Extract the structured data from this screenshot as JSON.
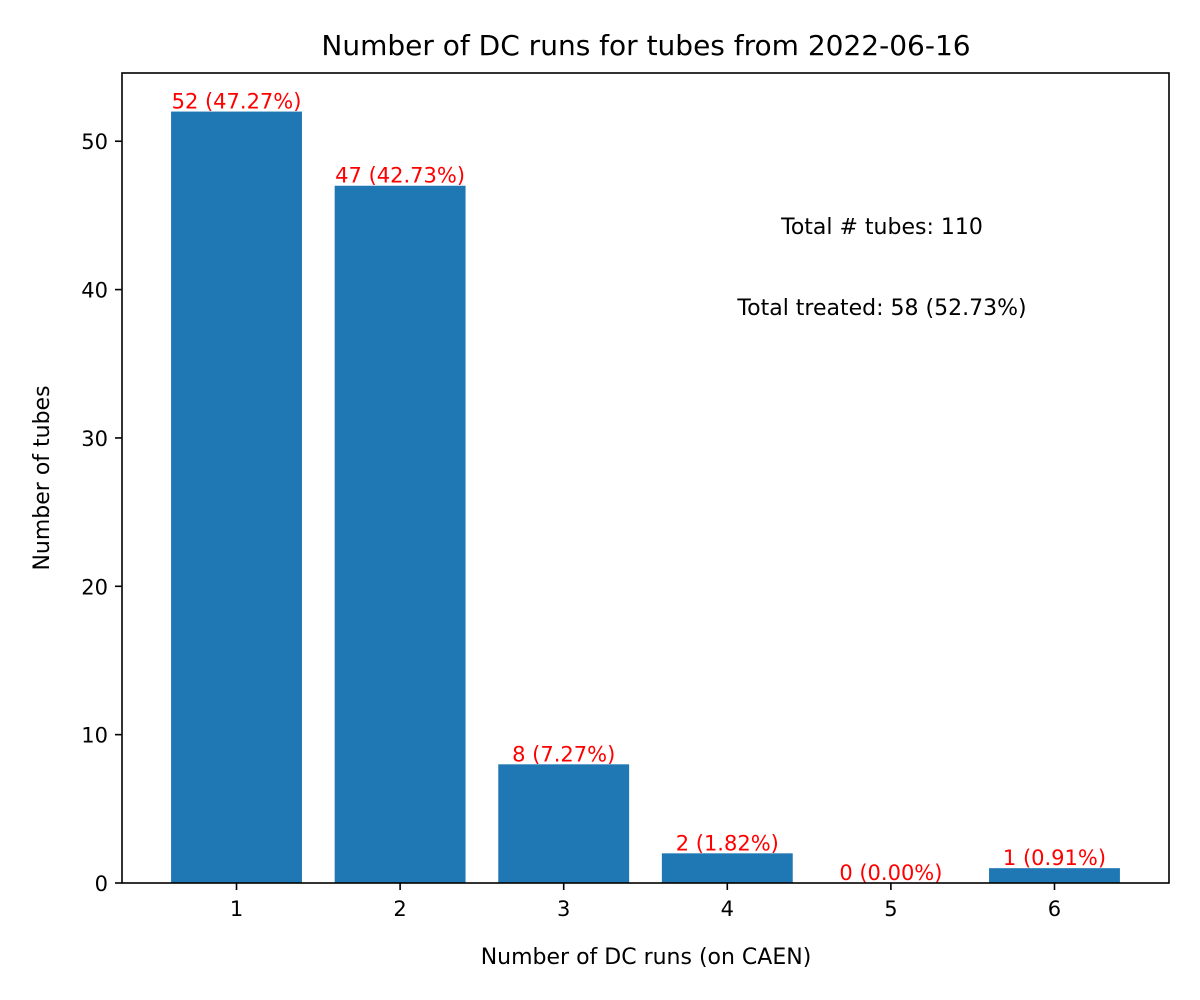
{
  "chart_data": {
    "type": "bar",
    "title": "Number of DC runs for tubes from 2022-06-16",
    "xlabel": "Number of DC runs (on CAEN)",
    "ylabel": "Number of tubes",
    "categories": [
      "1",
      "2",
      "3",
      "4",
      "5",
      "6"
    ],
    "values": [
      52,
      47,
      8,
      2,
      0,
      1
    ],
    "data_labels": [
      "52 (47.27%)",
      "47 (42.73%)",
      "8 (7.27%)",
      "2 (1.82%)",
      "0 (0.00%)",
      "1 (0.91%)"
    ],
    "xlim": [
      0.3,
      6.7
    ],
    "ylim": [
      0,
      54.6
    ],
    "yticks": [
      0,
      10,
      20,
      30,
      40,
      50
    ],
    "ytick_labels": [
      "0",
      "10",
      "20",
      "30",
      "40",
      "50"
    ],
    "bar_color": "#1f77b4",
    "label_color": "#ff0000",
    "grid": false,
    "annotations": [
      "Total # tubes: 110",
      "Total treated: 58 (52.73%)"
    ]
  }
}
